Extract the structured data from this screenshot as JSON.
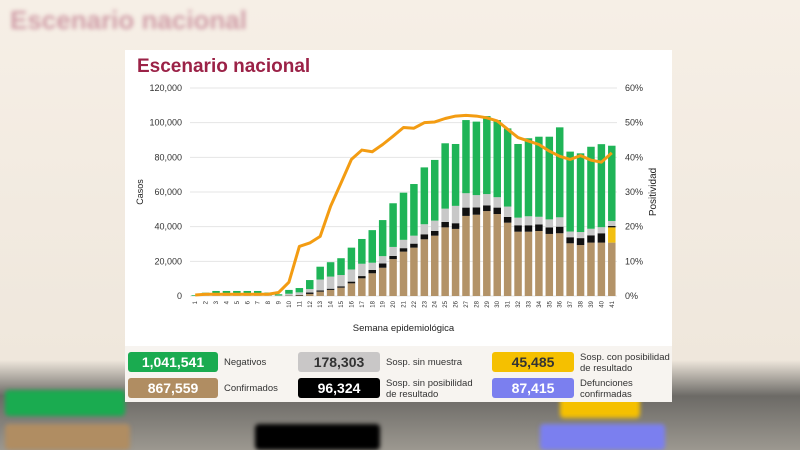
{
  "background_title": "Escenario nacional",
  "title": "Escenario nacional",
  "chart_data": {
    "type": "bar",
    "stacked": true,
    "xlabel": "Semana epidemiológica",
    "ylabel": "Casos",
    "y2label": "Positividad",
    "ylim": [
      0,
      120000
    ],
    "y2lim": [
      0,
      60
    ],
    "yticks": [
      "0",
      "20,000",
      "40,000",
      "60,000",
      "80,000",
      "100,000",
      "120,000"
    ],
    "y2ticks": [
      "0%",
      "10%",
      "20%",
      "30%",
      "40%",
      "50%",
      "60%"
    ],
    "grid": true,
    "categories": [
      "1",
      "2",
      "3",
      "4",
      "5",
      "6",
      "7",
      "8",
      "9",
      "10",
      "11",
      "12",
      "13",
      "14",
      "15",
      "16",
      "17",
      "18",
      "19",
      "20",
      "21",
      "22",
      "23",
      "24",
      "25",
      "26",
      "27",
      "28",
      "29",
      "30",
      "31",
      "32",
      "33",
      "34",
      "35",
      "36",
      "37",
      "38",
      "39",
      "40",
      "41"
    ],
    "series": [
      {
        "name": "Confirmados",
        "color": "#b39368",
        "values": [
          50,
          150,
          200,
          200,
          200,
          200,
          200,
          150,
          100,
          200,
          300,
          1200,
          2500,
          3500,
          4800,
          7300,
          10200,
          13100,
          16300,
          21300,
          25600,
          27900,
          32700,
          34800,
          39600,
          38700,
          46200,
          46900,
          49000,
          47300,
          42300,
          37100,
          37100,
          37500,
          35800,
          36200,
          30400,
          29400,
          30800,
          30800,
          30800
        ]
      },
      {
        "name": "Sosp. con posibilidad de resultado",
        "color": "#f2bf12",
        "values": [
          0,
          0,
          0,
          0,
          0,
          0,
          0,
          0,
          0,
          0,
          0,
          0,
          0,
          0,
          0,
          0,
          0,
          0,
          0,
          0,
          0,
          0,
          0,
          0,
          0,
          0,
          0,
          0,
          0,
          0,
          0,
          0,
          0,
          0,
          0,
          0,
          0,
          0,
          0,
          0,
          8800
        ]
      },
      {
        "name": "Sosp. sin posibilidad de resultado",
        "color": "#111111",
        "values": [
          0,
          0,
          0,
          0,
          0,
          0,
          0,
          0,
          0,
          100,
          300,
          800,
          700,
          700,
          800,
          1000,
          1300,
          1900,
          2500,
          1800,
          2000,
          2300,
          2900,
          2700,
          3100,
          3300,
          4800,
          4200,
          3300,
          3700,
          3300,
          3700,
          3700,
          3800,
          3800,
          3800,
          3500,
          4000,
          4200,
          5400,
          800
        ]
      },
      {
        "name": "Sosp. sin muestra",
        "color": "#c8c8c8",
        "values": [
          50,
          200,
          300,
          300,
          300,
          300,
          300,
          200,
          200,
          1000,
          1500,
          2000,
          6300,
          7000,
          6500,
          7000,
          7100,
          4200,
          4200,
          5200,
          4800,
          4600,
          5800,
          6000,
          7700,
          10000,
          8300,
          7100,
          6500,
          6000,
          6000,
          4400,
          5200,
          4400,
          4600,
          5400,
          3300,
          3500,
          3800,
          3500,
          2900
        ]
      },
      {
        "name": "Negativos",
        "color": "#1fb457",
        "values": [
          400,
          1550,
          2400,
          2400,
          2400,
          2400,
          2400,
          1650,
          700,
          2200,
          2500,
          5200,
          7400,
          8300,
          9700,
          12600,
          14300,
          18800,
          20800,
          25200,
          27200,
          29800,
          32800,
          35000,
          37700,
          35700,
          42200,
          42400,
          45000,
          44500,
          45100,
          42500,
          45000,
          46200,
          47700,
          51900,
          46100,
          45400,
          47300,
          47900,
          43400
        ]
      }
    ],
    "line": {
      "name": "Positividad",
      "axis": "right",
      "color": "#f39c12",
      "values": [
        0.3,
        0.5,
        0.5,
        0.5,
        0.5,
        0.5,
        0.5,
        0.5,
        1,
        4,
        14.3,
        15.3,
        17.2,
        25.9,
        32.6,
        39.4,
        42.1,
        41.6,
        43.7,
        46.1,
        48.6,
        48.4,
        50,
        50.2,
        51.2,
        51.9,
        52.1,
        51.9,
        51.4,
        50.5,
        48.1,
        45.7,
        44.7,
        43.7,
        41.8,
        40.3,
        39.4,
        40.5,
        39.2,
        38.6,
        41.3
      ]
    }
  },
  "summary": [
    {
      "value": "1,041,541",
      "label": "Negativos",
      "color": "#1aab50",
      "text_color": "#ffffff"
    },
    {
      "value": "178,303",
      "label": "Sosp. sin muestra",
      "color": "#c9c7c7",
      "text_color": "#333333"
    },
    {
      "value": "45,485",
      "label": "Sosp. con posibilidad de resultado",
      "color": "#f5c000",
      "text_color": "#333333"
    },
    {
      "value": "867,559",
      "label": "Confirmados",
      "color": "#b08d62",
      "text_color": "#ffffff"
    },
    {
      "value": "96,324",
      "label": "Sosp. sin posibilidad de resultado",
      "color": "#000000",
      "text_color": "#ffffff"
    },
    {
      "value": "87,415",
      "label": "Defunciones confirmadas",
      "color": "#7b7fef",
      "text_color": "#ffffff"
    }
  ]
}
